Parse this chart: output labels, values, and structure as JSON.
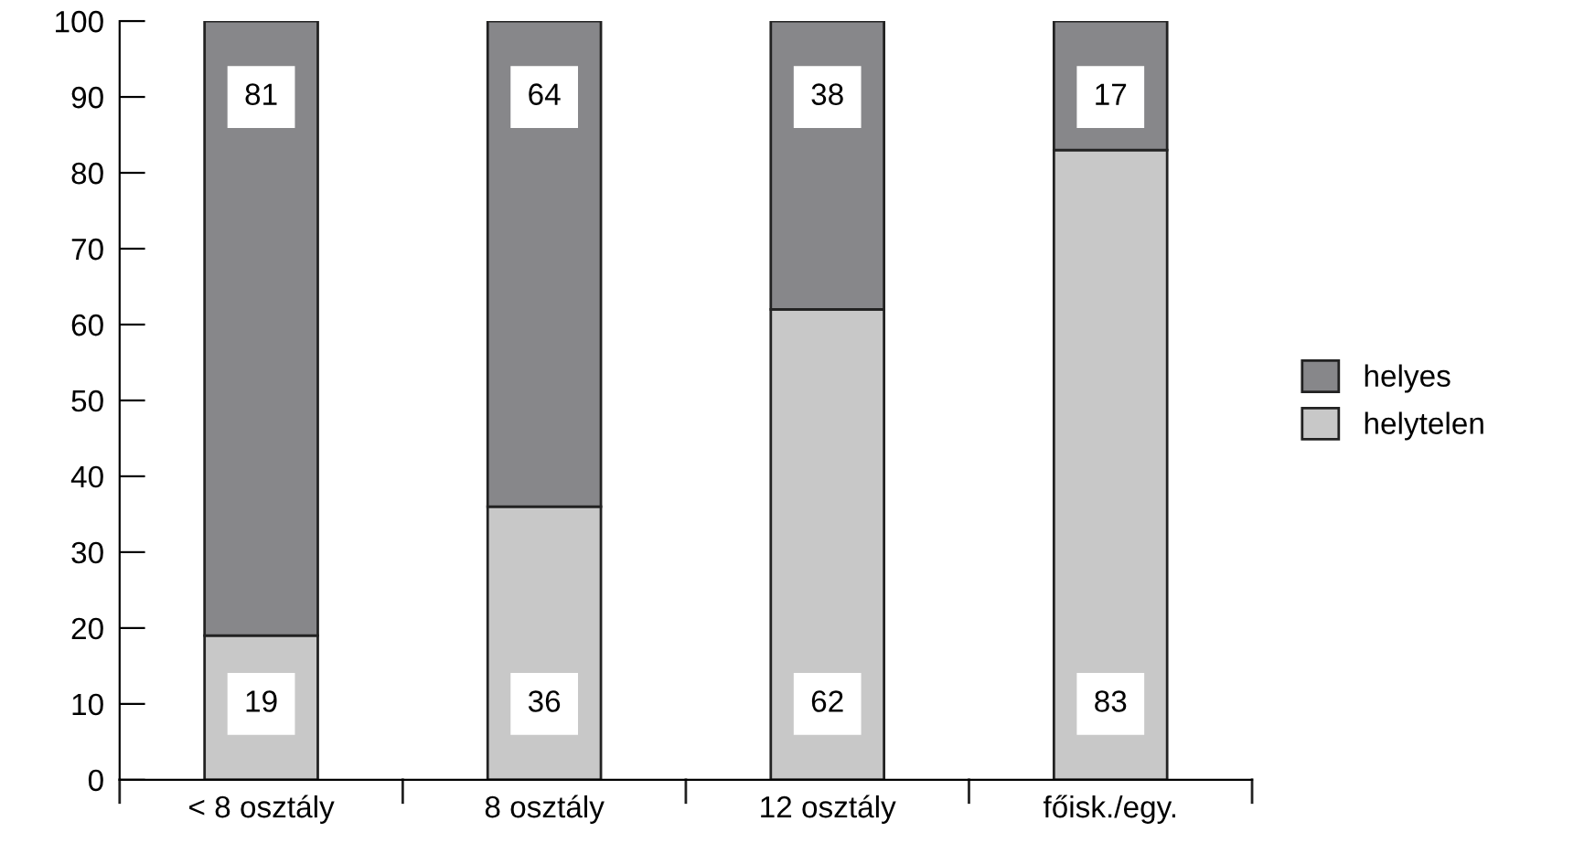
{
  "chart_data": {
    "type": "bar",
    "stacked": true,
    "categories": [
      "< 8 osztály",
      "8 osztály",
      "12 osztály",
      "főisk./egy."
    ],
    "series": [
      {
        "name": "helytelen",
        "color": "#c8c8c8",
        "values": [
          19,
          36,
          62,
          83
        ]
      },
      {
        "name": "helyes",
        "color": "#87878a",
        "values": [
          81,
          64,
          38,
          17
        ]
      }
    ],
    "ylim": [
      0,
      100
    ],
    "yticks": [
      0,
      10,
      20,
      30,
      40,
      50,
      60,
      70,
      80,
      90,
      100
    ],
    "data_labels": true,
    "legend": "right",
    "grid": false
  }
}
